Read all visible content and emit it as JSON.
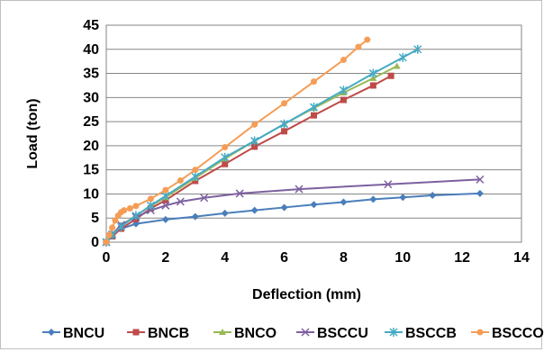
{
  "chart_data": {
    "type": "line",
    "xlabel": "Deflection (mm)",
    "ylabel": "Load (ton)",
    "xlim": [
      0,
      14
    ],
    "ylim": [
      0,
      45
    ],
    "xticks": [
      0,
      2,
      4,
      6,
      8,
      10,
      12,
      14
    ],
    "yticks": [
      0,
      5,
      10,
      15,
      20,
      25,
      30,
      35,
      40,
      45
    ],
    "grid": "horizontal",
    "legend_position": "bottom",
    "series": [
      {
        "name": "BNCU",
        "color": "#4a7ebb",
        "marker": "diamond",
        "x": [
          0,
          0.2,
          0.5,
          1.0,
          2.0,
          3.0,
          4.0,
          5.0,
          6.0,
          7.0,
          8.0,
          9.0,
          10.0,
          11.0,
          12.6
        ],
        "y": [
          0,
          1.5,
          2.8,
          3.8,
          4.7,
          5.3,
          6.0,
          6.6,
          7.2,
          7.8,
          8.3,
          8.9,
          9.3,
          9.7,
          10.1
        ]
      },
      {
        "name": "BNCB",
        "color": "#be4b48",
        "marker": "square",
        "x": [
          0,
          0.2,
          0.5,
          1.0,
          1.5,
          2.0,
          3.0,
          4.0,
          5.0,
          6.0,
          7.0,
          8.0,
          9.0,
          9.6
        ],
        "y": [
          0,
          1.2,
          2.8,
          4.8,
          7.0,
          8.7,
          12.7,
          16.2,
          19.8,
          23.0,
          26.3,
          29.5,
          32.5,
          34.5
        ]
      },
      {
        "name": "BNCO",
        "color": "#98b954",
        "marker": "triangle",
        "x": [
          0,
          0.2,
          0.5,
          1.0,
          1.5,
          2.0,
          3.0,
          4.0,
          5.0,
          6.0,
          7.0,
          8.0,
          9.0,
          9.8
        ],
        "y": [
          0,
          1.6,
          3.5,
          5.5,
          7.5,
          9.3,
          13.3,
          17.3,
          21.0,
          24.5,
          27.8,
          31.0,
          34.0,
          36.5
        ]
      },
      {
        "name": "BSCCU",
        "color": "#7d60a0",
        "marker": "x",
        "x": [
          0,
          0.2,
          0.5,
          1.0,
          1.5,
          2.0,
          2.5,
          3.3,
          4.5,
          6.5,
          9.5,
          12.6
        ],
        "y": [
          0,
          1.6,
          3.6,
          5.2,
          6.6,
          7.6,
          8.4,
          9.2,
          10.1,
          11.0,
          12.0,
          13.0
        ]
      },
      {
        "name": "BSCCB",
        "color": "#46aac5",
        "marker": "star",
        "x": [
          0,
          0.2,
          0.5,
          1.0,
          1.5,
          2.0,
          3.0,
          4.0,
          5.0,
          6.0,
          7.0,
          8.0,
          9.0,
          10.0,
          10.5
        ],
        "y": [
          0,
          1.5,
          3.2,
          5.5,
          7.6,
          9.6,
          13.6,
          17.6,
          21.0,
          24.5,
          28.0,
          31.5,
          35.0,
          38.3,
          40.0
        ]
      },
      {
        "name": "BSCCO",
        "color": "#f59d56",
        "marker": "circle",
        "x": [
          0,
          0.1,
          0.2,
          0.3,
          0.4,
          0.5,
          0.6,
          0.8,
          1.0,
          1.5,
          2.0,
          2.5,
          3.0,
          4.0,
          5.0,
          6.0,
          7.0,
          8.0,
          8.5,
          8.8
        ],
        "y": [
          0,
          1.5,
          3.0,
          4.5,
          5.5,
          6.2,
          6.6,
          7.0,
          7.5,
          9.0,
          10.8,
          12.8,
          15.0,
          19.7,
          24.4,
          28.8,
          33.3,
          37.8,
          40.5,
          42.0
        ]
      }
    ]
  }
}
